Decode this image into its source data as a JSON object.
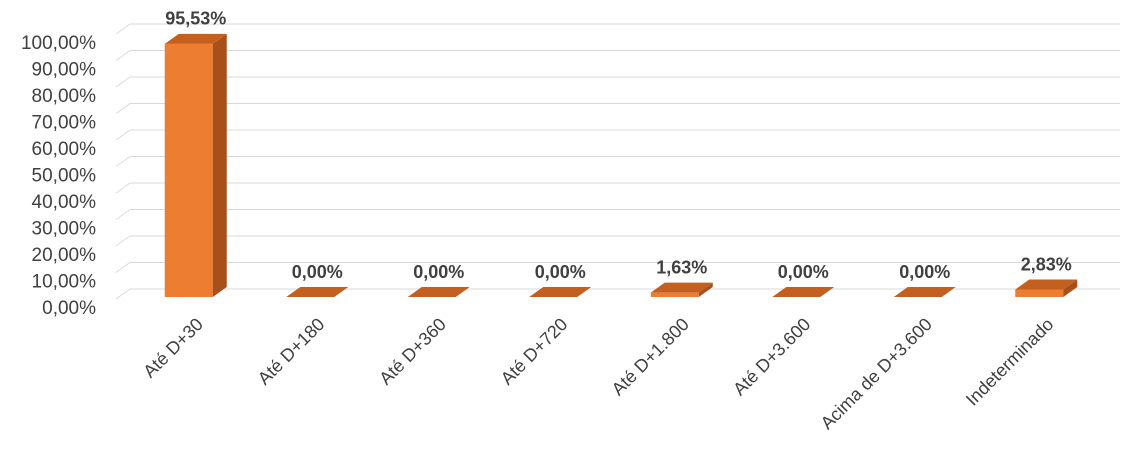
{
  "chart_data": {
    "type": "bar3d",
    "categories": [
      "Até D+30",
      "Até D+180",
      "Até D+360",
      "Até D+720",
      "Até D+1.800",
      "Até D+3.600",
      "Acima de D+3.600",
      "Indeterminado"
    ],
    "values": [
      95.53,
      0,
      0,
      0,
      1.63,
      0,
      0,
      2.83
    ],
    "value_labels": [
      "95,53%",
      "0,00%",
      "0,00%",
      "0,00%",
      "1,63%",
      "0,00%",
      "0,00%",
      "2,83%"
    ],
    "color": "#ed7d31",
    "ylim": [
      0,
      100
    ],
    "yticks": [
      {
        "value": 0,
        "label": "0,00%"
      },
      {
        "value": 10,
        "label": "10,00%"
      },
      {
        "value": 20,
        "label": "20,00%"
      },
      {
        "value": 30,
        "label": "30,00%"
      },
      {
        "value": 40,
        "label": "40,00%"
      },
      {
        "value": 50,
        "label": "50,00%"
      },
      {
        "value": 60,
        "label": "60,00%"
      },
      {
        "value": 70,
        "label": "70,00%"
      },
      {
        "value": 80,
        "label": "80,00%"
      },
      {
        "value": 90,
        "label": "90,00%"
      },
      {
        "value": 100,
        "label": "100,00%"
      }
    ],
    "grid": true
  }
}
